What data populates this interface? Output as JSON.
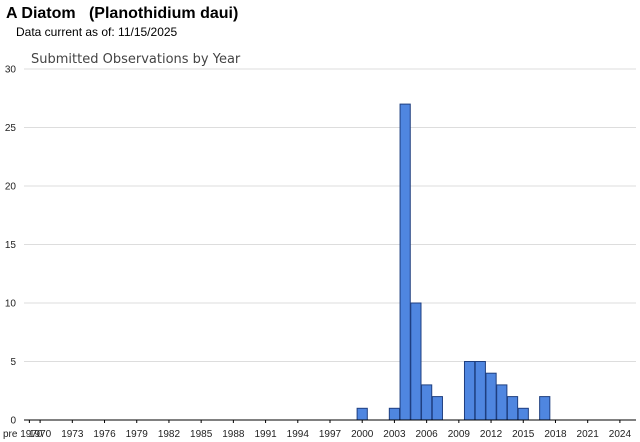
{
  "header": {
    "title": "A Diatom   (Planothidium daui)",
    "data_current": "Data current as of: 11/15/2025"
  },
  "colors": {
    "bar_fill": "#4f86e0",
    "bar_stroke": "#1f3f80",
    "grid": "#dddddd",
    "axis": "#000000"
  },
  "chart_data": {
    "type": "bar",
    "title": "Submitted Observations by Year",
    "xlabel": "",
    "ylabel": "",
    "ylim": [
      0,
      30
    ],
    "yticks": [
      0,
      5,
      10,
      15,
      20,
      25,
      30
    ],
    "grid": true,
    "categories": [
      "pre 1970",
      "1970",
      "1971",
      "1972",
      "1973",
      "1974",
      "1975",
      "1976",
      "1977",
      "1978",
      "1979",
      "1980",
      "1981",
      "1982",
      "1983",
      "1984",
      "1985",
      "1986",
      "1987",
      "1988",
      "1989",
      "1990",
      "1991",
      "1992",
      "1993",
      "1994",
      "1995",
      "1996",
      "1997",
      "1998",
      "1999",
      "2000",
      "2001",
      "2002",
      "2003",
      "2004",
      "2005",
      "2006",
      "2007",
      "2008",
      "2009",
      "2010",
      "2011",
      "2012",
      "2013",
      "2014",
      "2015",
      "2016",
      "2017",
      "2018",
      "2019",
      "2020",
      "2021",
      "2022",
      "2023",
      "2024",
      "2025"
    ],
    "x_tick_labels": [
      "pre 1970",
      "1970",
      "1973",
      "1976",
      "1979",
      "1982",
      "1985",
      "1988",
      "1991",
      "1994",
      "1997",
      "2000",
      "2003",
      "2006",
      "2009",
      "2012",
      "2015",
      "2018",
      "2021",
      "2024"
    ],
    "values": [
      0,
      0,
      0,
      0,
      0,
      0,
      0,
      0,
      0,
      0,
      0,
      0,
      0,
      0,
      0,
      0,
      0,
      0,
      0,
      0,
      0,
      0,
      0,
      0,
      0,
      0,
      0,
      0,
      0,
      0,
      0,
      1,
      0,
      0,
      1,
      27,
      10,
      3,
      2,
      0,
      0,
      5,
      5,
      4,
      3,
      2,
      1,
      0,
      2,
      0,
      0,
      0,
      0,
      0,
      0,
      0,
      0
    ]
  }
}
